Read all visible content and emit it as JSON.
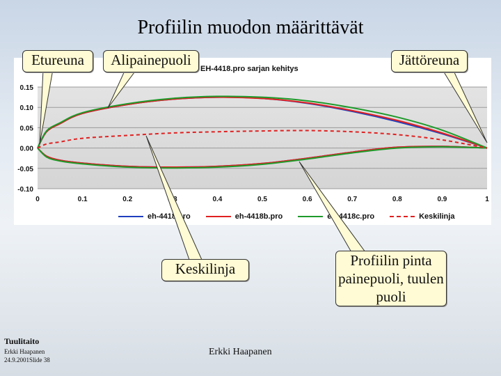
{
  "slide": {
    "title": "Profiilin muodon määrittävät",
    "footer": {
      "brand": "Tuulitaito",
      "author": "Erkki Haapanen",
      "date_slide": "24.9.2001Slide 38",
      "center": "Erkki Haapanen"
    }
  },
  "callouts": {
    "etureuna": "Etureuna",
    "alipainepuoli": "Alipainepuoli",
    "jattoreuna": "Jättöreuna",
    "keskilinja": "Keskilinja",
    "painepuoli": "Profiilin pinta painepuoli, tuulen puoli"
  },
  "chart_data": {
    "type": "line",
    "title": "EH-4418.pro sarjan kehitys",
    "xlim": [
      0,
      1
    ],
    "ylim": [
      -0.1,
      0.15
    ],
    "grid": true,
    "legend_position": "bottom",
    "x_ticks": [
      "0",
      "0.1",
      "0.2",
      "0.3",
      "0.4",
      "0.5",
      "0.6",
      "0.7",
      "0.8",
      "0.9",
      "1"
    ],
    "y_ticks": [
      "0.15",
      "0.10",
      "0.05",
      "0.00",
      "-0.05",
      "-0.10"
    ],
    "x": [
      0,
      0.02,
      0.05,
      0.1,
      0.2,
      0.3,
      0.4,
      0.5,
      0.6,
      0.7,
      0.8,
      0.9,
      1
    ],
    "series": [
      {
        "name": "eh-4418.pro",
        "color": "#1f3fbf",
        "dash": false,
        "upper": [
          0,
          0.04,
          0.06,
          0.085,
          0.107,
          0.12,
          0.125,
          0.122,
          0.11,
          0.09,
          0.065,
          0.035,
          0
        ],
        "lower": [
          0,
          -0.02,
          -0.03,
          -0.037,
          -0.045,
          -0.047,
          -0.045,
          -0.038,
          -0.025,
          -0.01,
          0.002,
          0.004,
          0
        ]
      },
      {
        "name": "eh-4418b.pro",
        "color": "#e02020",
        "dash": false,
        "upper": [
          0,
          0.04,
          0.06,
          0.085,
          0.107,
          0.12,
          0.125,
          0.122,
          0.111,
          0.092,
          0.068,
          0.037,
          0
        ],
        "lower": [
          0,
          -0.02,
          -0.03,
          -0.037,
          -0.045,
          -0.047,
          -0.045,
          -0.038,
          -0.025,
          -0.01,
          0.002,
          0.004,
          0
        ]
      },
      {
        "name": "eh-4418c.pro",
        "color": "#1e9a2a",
        "dash": false,
        "upper": [
          0,
          0.042,
          0.062,
          0.087,
          0.109,
          0.122,
          0.127,
          0.125,
          0.116,
          0.099,
          0.076,
          0.044,
          0
        ],
        "lower": [
          0,
          -0.022,
          -0.032,
          -0.039,
          -0.047,
          -0.049,
          -0.047,
          -0.04,
          -0.027,
          -0.012,
          0,
          0.003,
          0
        ]
      },
      {
        "name": "Keskilinja",
        "color": "#e02020",
        "dash": true,
        "values": [
          0,
          0.01,
          0.015,
          0.024,
          0.031,
          0.037,
          0.04,
          0.042,
          0.043,
          0.04,
          0.033,
          0.02,
          0
        ]
      }
    ]
  }
}
